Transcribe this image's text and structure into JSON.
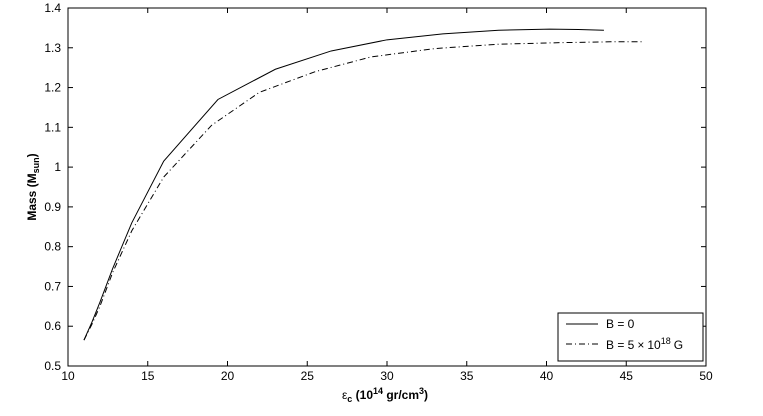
{
  "chart_data": {
    "type": "line",
    "xlabel": {
      "symbol": "ε",
      "sub": "c",
      "pre": " (10",
      "sup1": "14",
      "mid": " gr/cm",
      "sup2": "3",
      "post": ")"
    },
    "ylabel": {
      "main": "Mass (M",
      "sub": "sun",
      "post": ")"
    },
    "xlim": [
      10,
      50
    ],
    "ylim": [
      0.5,
      1.4
    ],
    "xticks": [
      10,
      15,
      20,
      25,
      30,
      35,
      40,
      45,
      50
    ],
    "xtick_labels": [
      "10",
      "15",
      "20",
      "25",
      "30",
      "35",
      "40",
      "45",
      "50"
    ],
    "yticks": [
      0.5,
      0.6,
      0.7,
      0.8,
      0.9,
      1.0,
      1.1,
      1.2,
      1.3,
      1.4
    ],
    "ytick_labels": [
      "0.5",
      "0.6",
      "0.7",
      "0.8",
      "0.9",
      "1",
      "1.1",
      "1.2",
      "1.3",
      "1.4"
    ],
    "grid": false,
    "legend_position": "bottom-right",
    "series": [
      {
        "name": "B = 0",
        "style": "solid",
        "color": "#000000",
        "x": [
          11.0,
          11.5,
          12.0,
          12.8,
          14.0,
          16.0,
          19.4,
          23.0,
          26.5,
          30.0,
          33.5,
          37.0,
          40.2,
          42.0,
          43.6
        ],
        "y": [
          0.565,
          0.61,
          0.66,
          0.745,
          0.86,
          1.015,
          1.17,
          1.246,
          1.292,
          1.32,
          1.335,
          1.344,
          1.347,
          1.346,
          1.344
        ]
      },
      {
        "name": "B = 5 × 10^18 G",
        "style": "dashdot",
        "color": "#000000",
        "x": [
          11.0,
          11.5,
          12.0,
          12.8,
          14.0,
          16.0,
          19.0,
          22.0,
          25.5,
          29.0,
          33.0,
          37.0,
          41.0,
          44.0,
          46.0
        ],
        "y": [
          0.565,
          0.605,
          0.65,
          0.735,
          0.84,
          0.975,
          1.105,
          1.188,
          1.24,
          1.277,
          1.298,
          1.309,
          1.313,
          1.315,
          1.315
        ]
      }
    ],
    "legend_labels": {
      "b0": "B = 0",
      "b5_pre": "B = 5",
      "times": "×",
      "ten": "10",
      "exp": "18",
      "unit": "G"
    }
  }
}
